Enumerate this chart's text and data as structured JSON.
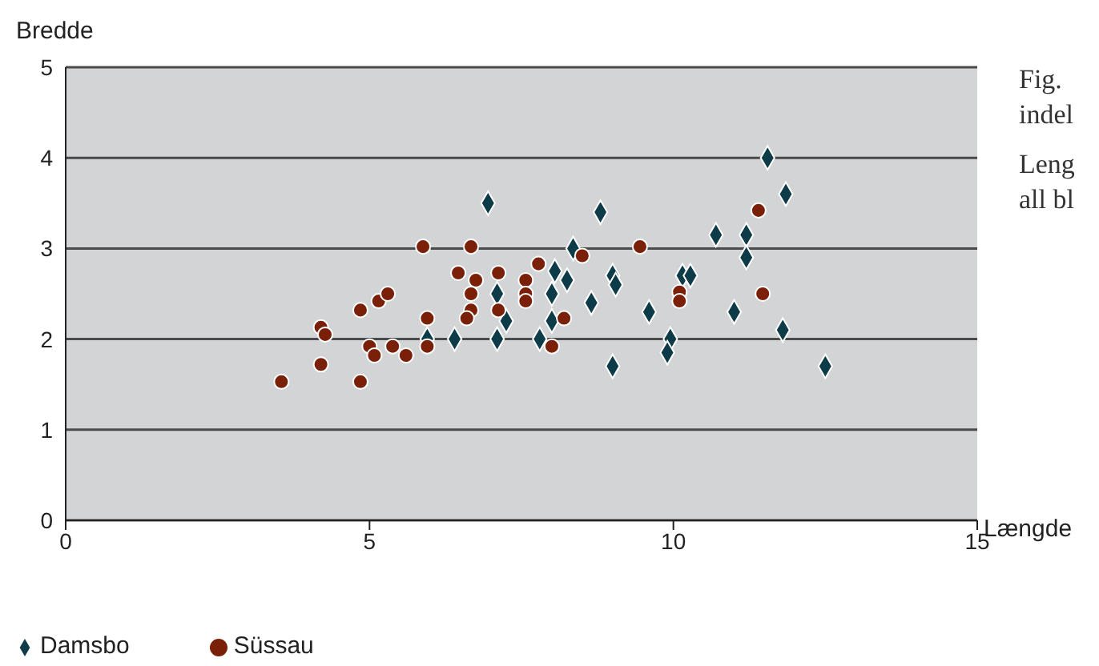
{
  "chart_data": {
    "type": "scatter",
    "xlabel": "Længde",
    "ylabel": "Bredde",
    "xlim": [
      0,
      15
    ],
    "xticks": [
      0,
      5,
      10,
      15
    ],
    "ylim": [
      0,
      5
    ],
    "yticks": [
      0,
      1,
      2,
      3,
      4,
      5
    ],
    "grid": "y",
    "legend": "bottom left",
    "annotations": [
      "Fig.",
      "indel",
      "Leng",
      "all bl"
    ],
    "series": [
      {
        "name": "Damsbo",
        "color": "#0d3b47",
        "marker": "diamond",
        "x": [
          5.95,
          6.4,
          7.1,
          7.8,
          7.1,
          7.25,
          8.0,
          8.0,
          8.05,
          8.25,
          8.35,
          6.95,
          8.65,
          8.8,
          9.0,
          9.05,
          9.0,
          9.6,
          9.95,
          9.9,
          10.15,
          10.28,
          10.7,
          11.2,
          11.2,
          11.0,
          11.55,
          11.85,
          11.8,
          12.5
        ],
        "values": [
          2.0,
          2.0,
          2.0,
          2.0,
          2.5,
          2.2,
          2.2,
          2.5,
          2.75,
          2.65,
          3.0,
          3.5,
          2.4,
          3.4,
          2.7,
          2.6,
          1.7,
          2.3,
          2.0,
          1.85,
          2.7,
          2.7,
          3.15,
          3.15,
          2.9,
          2.3,
          4.0,
          3.6,
          2.1,
          1.7
        ]
      },
      {
        "name": "Süssau",
        "color": "#7a2008",
        "marker": "circle",
        "x": [
          3.55,
          4.2,
          4.27,
          4.2,
          4.85,
          4.85,
          5.15,
          5.3,
          5.0,
          5.08,
          5.38,
          5.6,
          5.88,
          5.95,
          5.95,
          6.46,
          6.67,
          6.75,
          6.67,
          6.67,
          6.6,
          7.12,
          7.12,
          7.57,
          7.57,
          7.57,
          7.78,
          8.5,
          8.2,
          8.0,
          9.45,
          10.1,
          10.1,
          11.4,
          11.47
        ],
        "values": [
          1.53,
          2.13,
          2.05,
          1.72,
          1.53,
          2.32,
          2.42,
          2.5,
          1.92,
          1.82,
          1.92,
          1.82,
          3.02,
          2.23,
          1.92,
          2.73,
          3.02,
          2.65,
          2.5,
          2.32,
          2.23,
          2.73,
          2.32,
          2.65,
          2.5,
          2.42,
          2.83,
          2.92,
          2.23,
          1.92,
          3.02,
          2.52,
          2.42,
          3.42,
          2.5
        ]
      }
    ]
  }
}
